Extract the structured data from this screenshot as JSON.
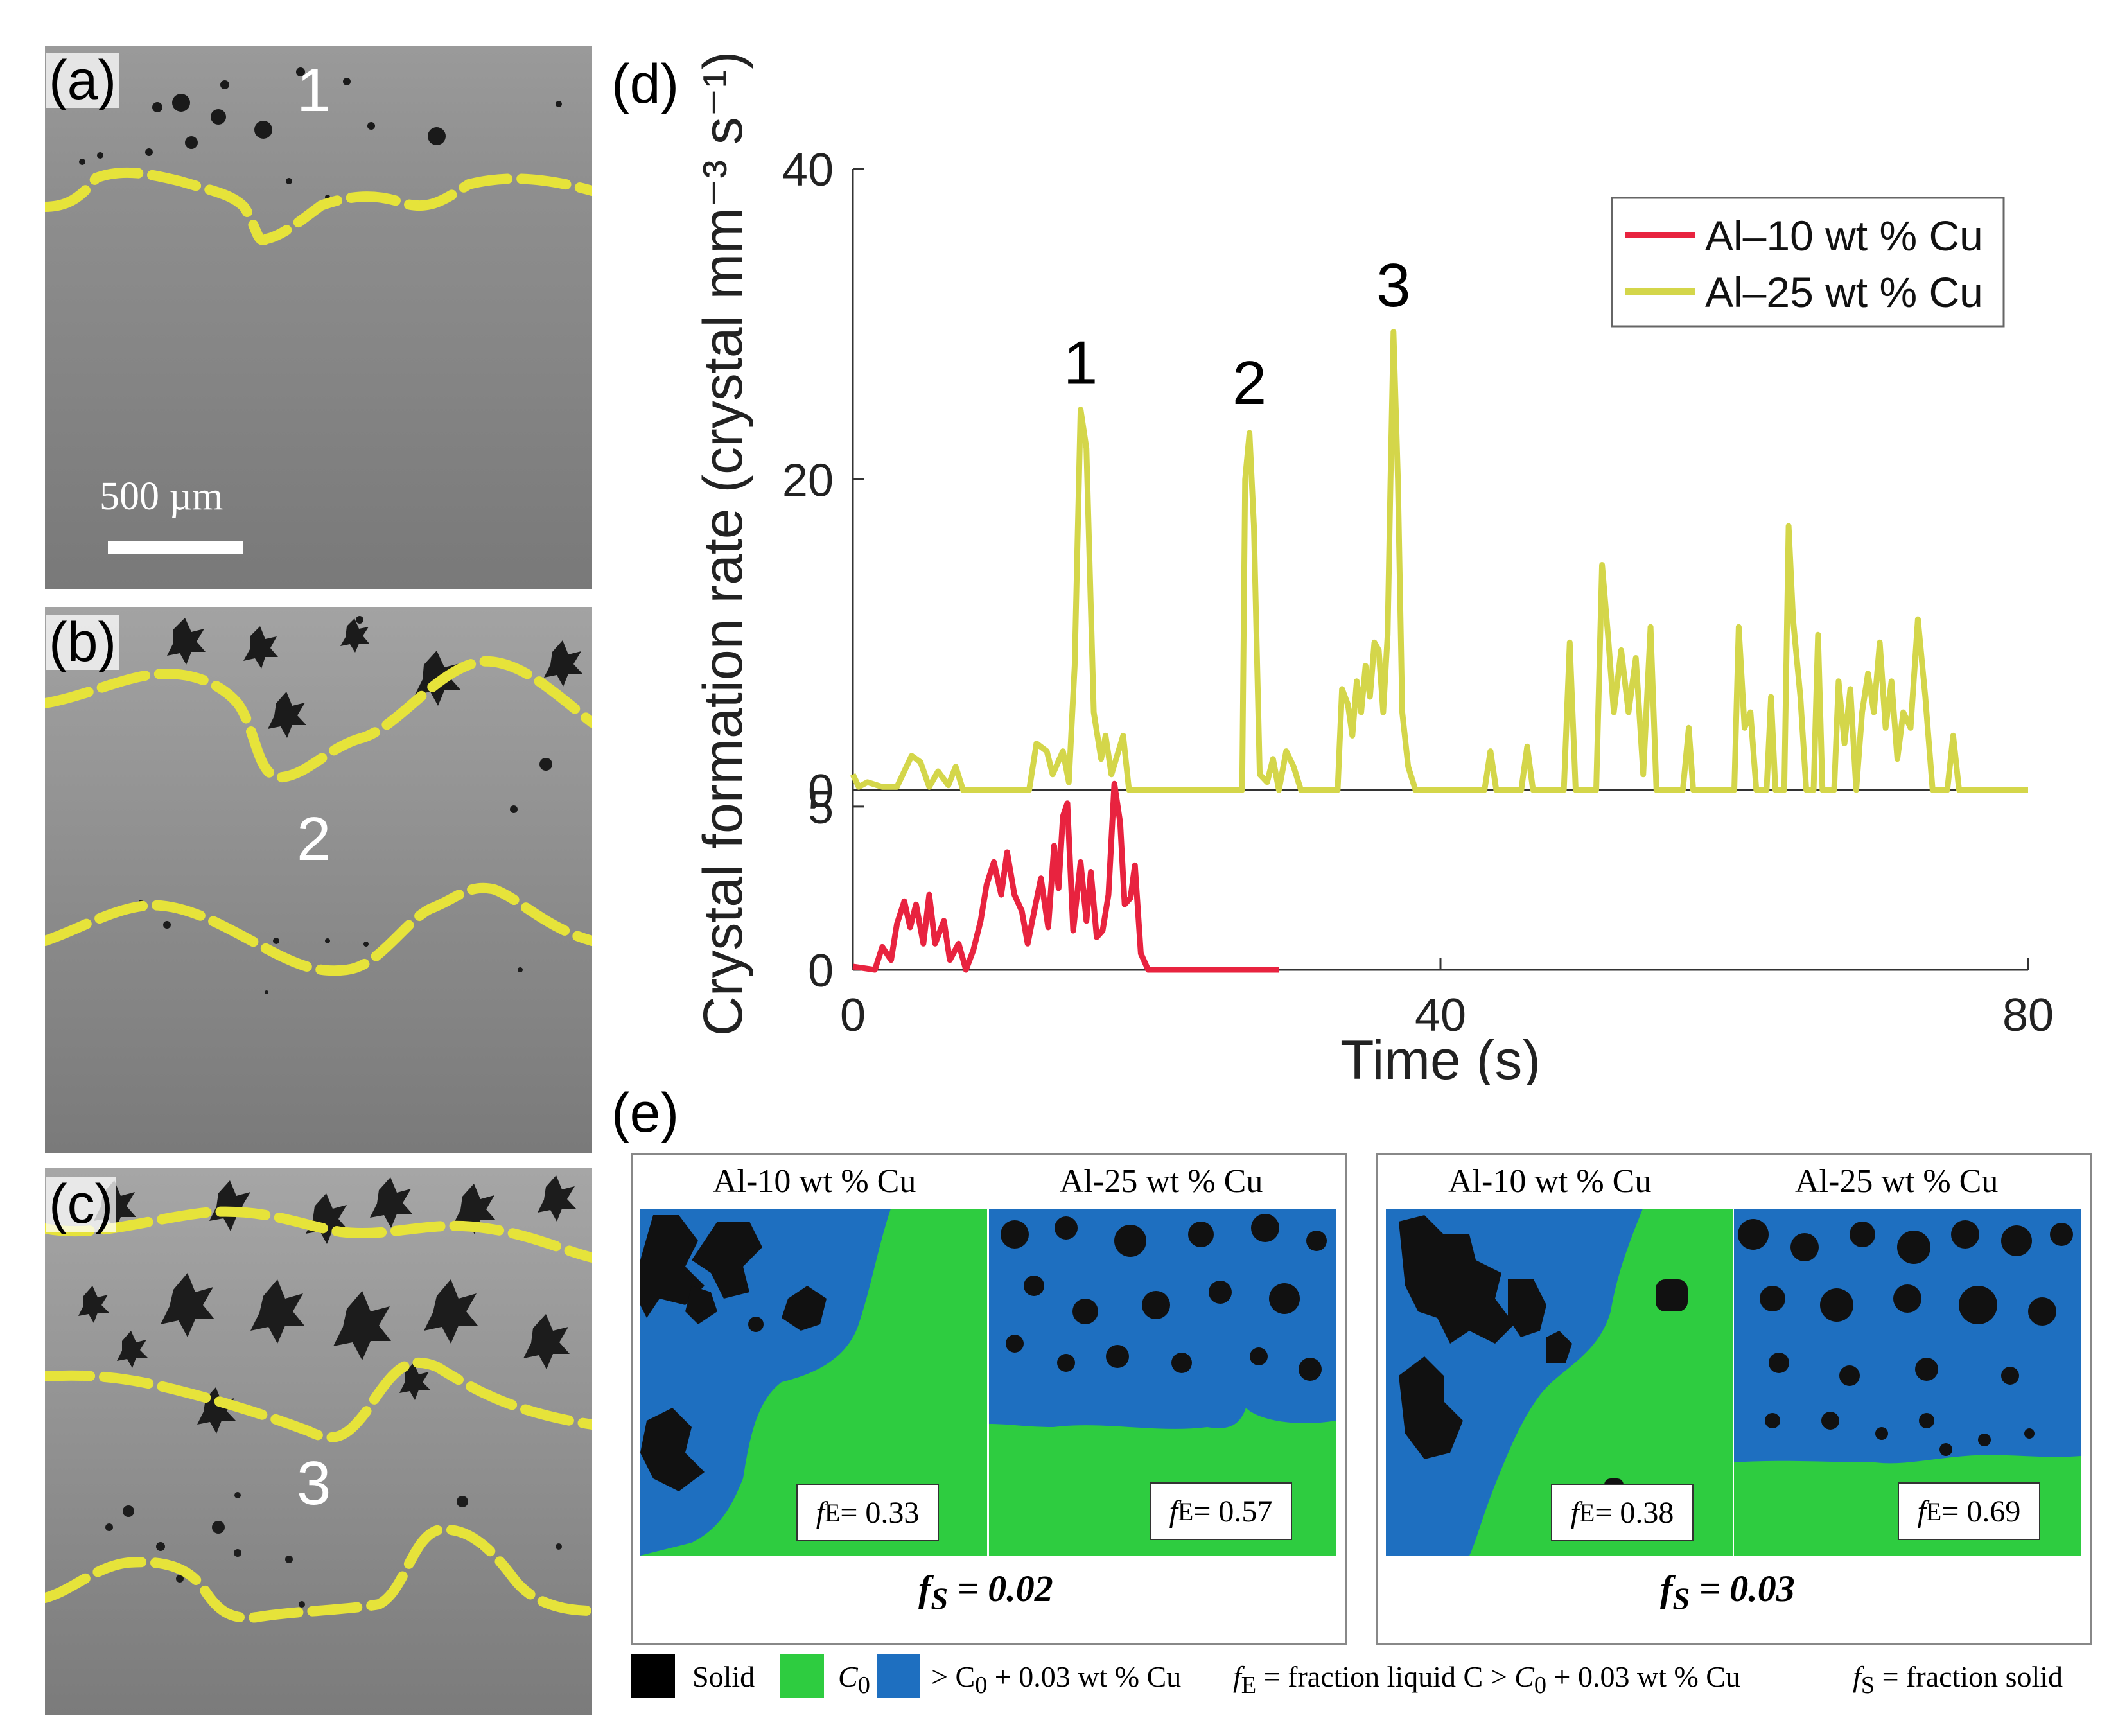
{
  "panels": {
    "a": {
      "label": "(a)",
      "region_number": "1",
      "scale_bar": "500 µm"
    },
    "b": {
      "label": "(b)",
      "region_number": "2"
    },
    "c": {
      "label": "(c)",
      "region_number": "3"
    },
    "d": {
      "label": "(d)"
    },
    "e": {
      "label": "(e)"
    }
  },
  "colors": {
    "red_series": "#e8233f",
    "yellow_series": "#d4d64a",
    "front_line": "#e6e33a",
    "solid": "#000000",
    "c0": "#2ecc40",
    "enriched": "#1e6fc0"
  },
  "chart_data": {
    "type": "line",
    "ylabel": "Crystal formation rate (crystal mm⁻³ s⁻¹)",
    "xlabel": "Time (s)",
    "xlim": [
      0,
      80
    ],
    "x_ticks": [
      "0",
      "40",
      "80"
    ],
    "upper_axis": {
      "ylim": [
        0,
        40
      ],
      "y_ticks": [
        "0",
        "20",
        "40"
      ]
    },
    "lower_axis": {
      "ylim": [
        0,
        6
      ],
      "y_ticks": [
        "0",
        "5"
      ]
    },
    "peak_annotations": [
      {
        "label": "1",
        "x": 15.5,
        "y": 24.5
      },
      {
        "label": "2",
        "x": 27.0,
        "y": 23.2
      },
      {
        "label": "3",
        "x": 36.8,
        "y": 29.5
      }
    ],
    "legend": [
      "Al–10 wt % Cu",
      "Al–25 wt % Cu"
    ],
    "series": [
      {
        "name": "Al–25 wt % Cu",
        "axis": "upper",
        "points": [
          [
            0,
            1
          ],
          [
            0.4,
            0.2
          ],
          [
            1,
            0.5
          ],
          [
            2,
            0.2
          ],
          [
            3,
            0.2
          ],
          [
            4,
            2.2
          ],
          [
            4.6,
            1.8
          ],
          [
            5.2,
            0.2
          ],
          [
            5.8,
            1.2
          ],
          [
            6.5,
            0.3
          ],
          [
            7,
            1.5
          ],
          [
            7.5,
            0
          ],
          [
            12,
            0
          ],
          [
            12.5,
            3
          ],
          [
            13.2,
            2.5
          ],
          [
            13.6,
            1
          ],
          [
            14.3,
            2.5
          ],
          [
            14.7,
            0.5
          ],
          [
            15.1,
            8
          ],
          [
            15.5,
            24.5
          ],
          [
            15.9,
            22
          ],
          [
            16.4,
            5
          ],
          [
            16.9,
            2
          ],
          [
            17.2,
            3.5
          ],
          [
            17.6,
            1
          ],
          [
            18.4,
            3.5
          ],
          [
            18.8,
            0
          ],
          [
            26.5,
            0
          ],
          [
            26.7,
            20
          ],
          [
            27.0,
            23
          ],
          [
            27.3,
            17
          ],
          [
            27.7,
            1
          ],
          [
            28.2,
            0.5
          ],
          [
            28.6,
            2
          ],
          [
            29.0,
            0
          ],
          [
            29.5,
            2.5
          ],
          [
            30.0,
            1.5
          ],
          [
            30.5,
            0
          ],
          [
            33.0,
            0
          ],
          [
            33.3,
            6.5
          ],
          [
            33.7,
            5.5
          ],
          [
            34.0,
            3.5
          ],
          [
            34.3,
            7
          ],
          [
            34.6,
            5
          ],
          [
            34.9,
            8
          ],
          [
            35.2,
            6
          ],
          [
            35.5,
            9.5
          ],
          [
            35.8,
            9
          ],
          [
            36.1,
            5
          ],
          [
            36.4,
            10
          ],
          [
            36.6,
            20
          ],
          [
            36.8,
            29.5
          ],
          [
            37.1,
            20
          ],
          [
            37.4,
            5
          ],
          [
            37.8,
            1.5
          ],
          [
            38.3,
            0
          ],
          [
            43,
            0
          ],
          [
            43.4,
            2.5
          ],
          [
            43.8,
            0
          ],
          [
            45.5,
            0
          ],
          [
            45.9,
            2.8
          ],
          [
            46.3,
            0
          ],
          [
            48.4,
            0
          ],
          [
            48.8,
            9.5
          ],
          [
            49.2,
            0
          ],
          [
            50.6,
            0
          ],
          [
            51.0,
            14.5
          ],
          [
            51.4,
            10
          ],
          [
            51.8,
            5
          ],
          [
            52.3,
            9
          ],
          [
            52.8,
            5
          ],
          [
            53.3,
            8.5
          ],
          [
            53.8,
            1
          ],
          [
            54.3,
            10.5
          ],
          [
            54.7,
            0
          ],
          [
            56.5,
            0
          ],
          [
            56.9,
            4
          ],
          [
            57.2,
            0
          ],
          [
            60,
            0
          ],
          [
            60.3,
            10.5
          ],
          [
            60.7,
            4
          ],
          [
            61.1,
            5
          ],
          [
            61.5,
            0
          ],
          [
            62.2,
            0
          ],
          [
            62.5,
            6
          ],
          [
            62.8,
            0
          ],
          [
            63.4,
            0
          ],
          [
            63.7,
            17
          ],
          [
            64.0,
            11
          ],
          [
            64.5,
            6
          ],
          [
            64.9,
            0
          ],
          [
            65.4,
            0
          ],
          [
            65.7,
            10
          ],
          [
            66.0,
            0
          ],
          [
            66.8,
            0
          ],
          [
            67.1,
            7
          ],
          [
            67.5,
            3
          ],
          [
            67.9,
            6.5
          ],
          [
            68.3,
            0
          ],
          [
            68.7,
            5
          ],
          [
            69.1,
            7.5
          ],
          [
            69.5,
            5
          ],
          [
            69.9,
            9.5
          ],
          [
            70.3,
            4
          ],
          [
            70.7,
            7
          ],
          [
            71.1,
            2
          ],
          [
            71.5,
            5
          ],
          [
            72,
            4
          ],
          [
            72.5,
            11
          ],
          [
            73.0,
            6
          ],
          [
            73.5,
            0
          ],
          [
            74.5,
            0
          ],
          [
            74.9,
            3.5
          ],
          [
            75.3,
            0
          ],
          [
            80,
            0
          ]
        ]
      },
      {
        "name": "Al–10 wt % Cu",
        "axis": "lower",
        "points": [
          [
            0,
            0.1
          ],
          [
            1.5,
            0
          ],
          [
            2,
            0.7
          ],
          [
            2.6,
            0.3
          ],
          [
            3,
            1.4
          ],
          [
            3.5,
            2.1
          ],
          [
            3.9,
            1.3
          ],
          [
            4.3,
            2
          ],
          [
            4.8,
            0.8
          ],
          [
            5.2,
            2.3
          ],
          [
            5.6,
            0.8
          ],
          [
            6.2,
            1.5
          ],
          [
            6.6,
            0.3
          ],
          [
            7.2,
            0.8
          ],
          [
            7.7,
            0
          ],
          [
            8.2,
            0.6
          ],
          [
            8.7,
            1.5
          ],
          [
            9.1,
            2.6
          ],
          [
            9.6,
            3.3
          ],
          [
            10.1,
            2.3
          ],
          [
            10.5,
            3.6
          ],
          [
            11,
            2.3
          ],
          [
            11.5,
            1.8
          ],
          [
            11.9,
            0.8
          ],
          [
            12.3,
            1.7
          ],
          [
            12.8,
            2.8
          ],
          [
            13.3,
            1.3
          ],
          [
            13.7,
            3.8
          ],
          [
            14.0,
            2.5
          ],
          [
            14.3,
            4.7
          ],
          [
            14.6,
            5.1
          ],
          [
            15.0,
            1.2
          ],
          [
            15.5,
            3.3
          ],
          [
            15.9,
            1.5
          ],
          [
            16.2,
            3
          ],
          [
            16.6,
            1
          ],
          [
            17,
            1.2
          ],
          [
            17.4,
            2.3
          ],
          [
            17.8,
            5.7
          ],
          [
            18.2,
            4.5
          ],
          [
            18.5,
            2
          ],
          [
            18.9,
            2.2
          ],
          [
            19.2,
            3.2
          ],
          [
            19.6,
            0.5
          ],
          [
            20.1,
            0
          ],
          [
            29,
            0
          ]
        ]
      }
    ]
  },
  "sim": {
    "left": {
      "head_left": "Al-10 wt % Cu",
      "head_right": "Al-25 wt % Cu",
      "fe_left": "f",
      "fe_left_value": " = 0.33",
      "fe_right_value": " = 0.57",
      "fs": "f",
      "fs_value": " = 0.02"
    },
    "right": {
      "head_left": "Al-10 wt % Cu",
      "head_right": "Al-25 wt % Cu",
      "fe_left_value": " = 0.38",
      "fe_right_value": " = 0.69",
      "fs_value": " = 0.03"
    }
  },
  "legend_e": {
    "solid": "Solid",
    "c0": "C",
    "c0_sub": "0",
    "enriched": "> C",
    "enriched_tail": " + 0.03 wt % Cu",
    "fe_def": " = fraction liquid C > ",
    "fe_def_tail": " + 0.03 wt % Cu",
    "fs_def": " = fraction solid",
    "sub_e": "E",
    "sub_s": "S",
    "f": "f"
  }
}
